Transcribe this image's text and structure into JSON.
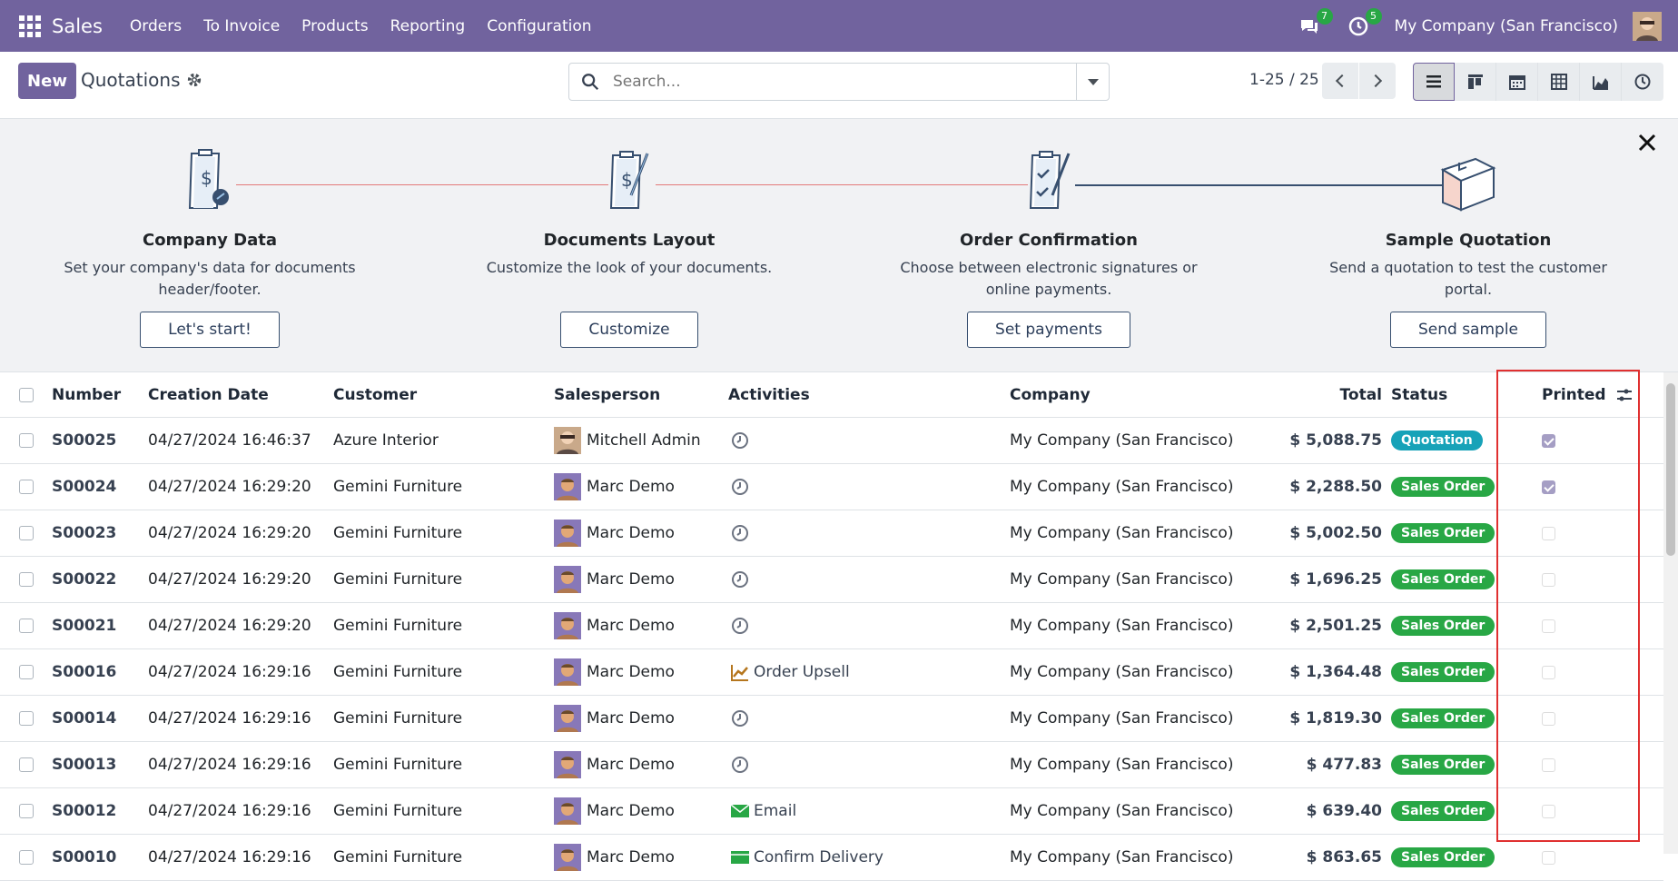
{
  "navbar": {
    "brand": "Sales",
    "menu": [
      "Orders",
      "To Invoice",
      "Products",
      "Reporting",
      "Configuration"
    ],
    "messages_count": "7",
    "activities_count": "5",
    "company": "My Company (San Francisco)"
  },
  "control": {
    "new_label": "New",
    "title": "Quotations",
    "search_placeholder": "Search...",
    "pager": "1-25 / 25"
  },
  "onboarding": {
    "steps": [
      {
        "title": "Company Data",
        "desc": "Set your company's data for documents header/footer.",
        "button": "Let's start!"
      },
      {
        "title": "Documents Layout",
        "desc": "Customize the look of your documents.",
        "button": "Customize"
      },
      {
        "title": "Order Confirmation",
        "desc": "Choose between electronic signatures or online payments.",
        "button": "Set payments"
      },
      {
        "title": "Sample Quotation",
        "desc": "Send a quotation to test the customer portal.",
        "button": "Send sample"
      }
    ]
  },
  "table": {
    "headers": {
      "number": "Number",
      "creation_date": "Creation Date",
      "customer": "Customer",
      "salesperson": "Salesperson",
      "activities": "Activities",
      "company": "Company",
      "total": "Total",
      "status": "Status",
      "printed": "Printed"
    },
    "rows": [
      {
        "number": "S00025",
        "date": "04/27/2024 16:46:37",
        "customer": "Azure Interior",
        "salesperson": "Mitchell Admin",
        "activity": "",
        "activity_icon": "clock-icon",
        "company": "My Company (San Francisco)",
        "total": "$ 5,088.75",
        "status": "Quotation",
        "printed": true
      },
      {
        "number": "S00024",
        "date": "04/27/2024 16:29:20",
        "customer": "Gemini Furniture",
        "salesperson": "Marc Demo",
        "activity": "",
        "activity_icon": "clock-icon",
        "company": "My Company (San Francisco)",
        "total": "$ 2,288.50",
        "status": "Sales Order",
        "printed": true
      },
      {
        "number": "S00023",
        "date": "04/27/2024 16:29:20",
        "customer": "Gemini Furniture",
        "salesperson": "Marc Demo",
        "activity": "",
        "activity_icon": "clock-icon",
        "company": "My Company (San Francisco)",
        "total": "$ 5,002.50",
        "status": "Sales Order",
        "printed": false
      },
      {
        "number": "S00022",
        "date": "04/27/2024 16:29:20",
        "customer": "Gemini Furniture",
        "salesperson": "Marc Demo",
        "activity": "",
        "activity_icon": "clock-icon",
        "company": "My Company (San Francisco)",
        "total": "$ 1,696.25",
        "status": "Sales Order",
        "printed": false
      },
      {
        "number": "S00021",
        "date": "04/27/2024 16:29:20",
        "customer": "Gemini Furniture",
        "salesperson": "Marc Demo",
        "activity": "",
        "activity_icon": "clock-icon",
        "company": "My Company (San Francisco)",
        "total": "$ 2,501.25",
        "status": "Sales Order",
        "printed": false
      },
      {
        "number": "S00016",
        "date": "04/27/2024 16:29:16",
        "customer": "Gemini Furniture",
        "salesperson": "Marc Demo",
        "activity": "Order Upsell",
        "activity_icon": "upsell-chart-icon",
        "company": "My Company (San Francisco)",
        "total": "$ 1,364.48",
        "status": "Sales Order",
        "printed": false
      },
      {
        "number": "S00014",
        "date": "04/27/2024 16:29:16",
        "customer": "Gemini Furniture",
        "salesperson": "Marc Demo",
        "activity": "",
        "activity_icon": "clock-icon",
        "company": "My Company (San Francisco)",
        "total": "$ 1,819.30",
        "status": "Sales Order",
        "printed": false
      },
      {
        "number": "S00013",
        "date": "04/27/2024 16:29:16",
        "customer": "Gemini Furniture",
        "salesperson": "Marc Demo",
        "activity": "",
        "activity_icon": "clock-icon",
        "company": "My Company (San Francisco)",
        "total": "$ 477.83",
        "status": "Sales Order",
        "printed": false
      },
      {
        "number": "S00012",
        "date": "04/27/2024 16:29:16",
        "customer": "Gemini Furniture",
        "salesperson": "Marc Demo",
        "activity": "Email",
        "activity_icon": "email-icon",
        "company": "My Company (San Francisco)",
        "total": "$ 639.40",
        "status": "Sales Order",
        "printed": false
      },
      {
        "number": "S00010",
        "date": "04/27/2024 16:29:16",
        "customer": "Gemini Furniture",
        "salesperson": "Marc Demo",
        "activity": "Confirm Delivery",
        "activity_icon": "delivery-icon",
        "company": "My Company (San Francisco)",
        "total": "$ 863.65",
        "status": "Sales Order",
        "printed": false
      }
    ]
  },
  "colors": {
    "brand": "#71639e",
    "quotation_badge": "#17a2b8",
    "sales_order_badge": "#28a745",
    "highlight": "#e03030"
  }
}
